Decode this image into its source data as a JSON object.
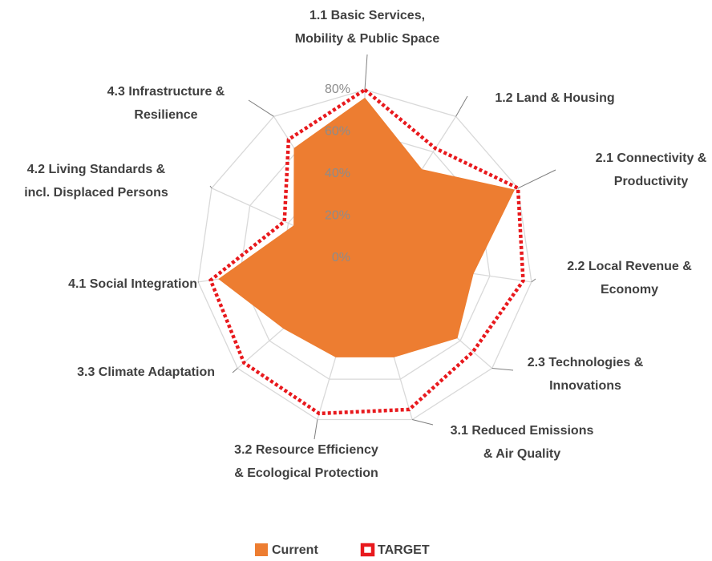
{
  "chart_data": {
    "type": "radar",
    "categories": [
      [
        "1.1 Basic Services,",
        "Mobility & Public Space"
      ],
      [
        "1.2 Land & Housing"
      ],
      [
        "2.1 Connectivity &",
        "Productivity"
      ],
      [
        "2.2 Local Revenue &",
        "Economy"
      ],
      [
        "2.3 Technologies &",
        "Innovations"
      ],
      [
        "3.1 Reduced Emissions",
        "& Air Quality"
      ],
      [
        "3.2 Resource Efficiency",
        "& Ecological Protection"
      ],
      [
        "3.3 Climate Adaptation"
      ],
      [
        "4.1 Social Integration"
      ],
      [
        "4.2 Living Standards &",
        "incl. Displaced Persons"
      ],
      [
        "4.3 Infrastructure &",
        "Resilience"
      ]
    ],
    "series": [
      {
        "name": "Current",
        "color": "#ed7d31",
        "values": [
          76,
          50,
          78,
          52,
          58,
          49,
          49,
          51,
          70,
          37,
          62
        ]
      },
      {
        "name": "TARGET",
        "color": "#e8191d",
        "values": [
          80,
          62,
          80,
          76,
          68,
          75,
          77,
          76,
          74,
          42,
          67
        ]
      }
    ],
    "ylim": [
      0,
      80
    ],
    "yticks": [
      {
        "value": 0,
        "label": "0%"
      },
      {
        "value": 20,
        "label": "20%"
      },
      {
        "value": 40,
        "label": "40%"
      },
      {
        "value": 60,
        "label": "60%"
      },
      {
        "value": 80,
        "label": "80%"
      }
    ],
    "grid": true
  }
}
